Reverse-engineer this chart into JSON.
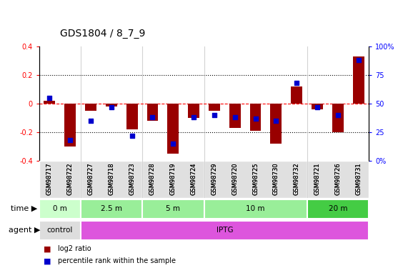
{
  "title": "GDS1804 / 8_7_9",
  "samples": [
    "GSM98717",
    "GSM98722",
    "GSM98727",
    "GSM98718",
    "GSM98723",
    "GSM98728",
    "GSM98719",
    "GSM98724",
    "GSM98729",
    "GSM98720",
    "GSM98725",
    "GSM98730",
    "GSM98732",
    "GSM98721",
    "GSM98726",
    "GSM98731"
  ],
  "log2_ratio": [
    0.02,
    -0.3,
    -0.05,
    -0.02,
    -0.18,
    -0.12,
    -0.35,
    -0.1,
    -0.05,
    -0.17,
    -0.19,
    -0.28,
    0.12,
    -0.04,
    -0.2,
    0.33
  ],
  "percentile_rank": [
    55,
    18,
    35,
    47,
    22,
    38,
    15,
    38,
    40,
    38,
    37,
    35,
    68,
    47,
    40,
    88
  ],
  "time_groups": [
    {
      "label": "0 m",
      "start": 0,
      "end": 2,
      "color": "#ccffcc"
    },
    {
      "label": "2.5 m",
      "start": 2,
      "end": 5,
      "color": "#99ee99"
    },
    {
      "label": "5 m",
      "start": 5,
      "end": 8,
      "color": "#99ee99"
    },
    {
      "label": "10 m",
      "start": 8,
      "end": 13,
      "color": "#99ee99"
    },
    {
      "label": "20 m",
      "start": 13,
      "end": 16,
      "color": "#44cc44"
    }
  ],
  "agent_groups": [
    {
      "label": "control",
      "start": 0,
      "end": 2,
      "color": "#dddddd"
    },
    {
      "label": "IPTG",
      "start": 2,
      "end": 16,
      "color": "#dd55dd"
    }
  ],
  "time_colors": [
    "#ccffcc",
    "#99ee99",
    "#99ee99",
    "#99ee99",
    "#44cc44"
  ],
  "agent_colors": [
    "#dddddd",
    "#dd55dd"
  ],
  "bar_color": "#990000",
  "dot_color": "#0000cc",
  "ylim_left": [
    -0.4,
    0.4
  ],
  "ylim_right": [
    0,
    100
  ],
  "yticks_left": [
    -0.4,
    -0.2,
    0.0,
    0.2,
    0.4
  ],
  "yticks_right": [
    0,
    25,
    50,
    75,
    100
  ],
  "yticklabels_left": [
    "-0.4",
    "-0.2",
    "0",
    "0.2",
    "0.4"
  ],
  "yticklabels_right": [
    "0%",
    "25",
    "50",
    "75",
    "100%"
  ],
  "group_separators": [
    1.5,
    4.5,
    7.5,
    12.5
  ],
  "legend_labels": [
    "log2 ratio",
    "percentile rank within the sample"
  ],
  "legend_colors": [
    "#990000",
    "#0000cc"
  ],
  "time_row_label": "time",
  "agent_row_label": "agent",
  "bar_width": 0.55,
  "dot_size": 22,
  "n_samples": 16
}
